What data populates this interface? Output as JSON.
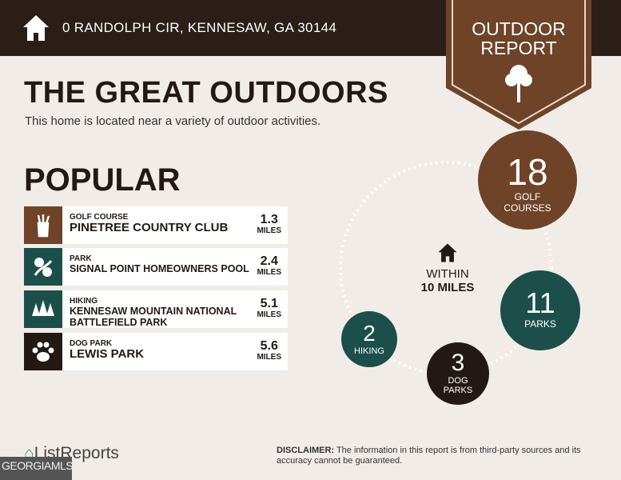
{
  "header": {
    "address": "0 RANDOLPH CIR, KENNESAW, GA 30144",
    "badge_line1": "OUTDOOR",
    "badge_line2": "REPORT"
  },
  "title": "THE GREAT OUTDOORS",
  "subtitle": "This home is located near a variety of outdoor activities.",
  "popular": {
    "heading": "POPULAR",
    "items": [
      {
        "category": "GOLF COURSE",
        "name": "PINETREE COUNTRY CLUB",
        "distance": "1.3",
        "unit": "MILES",
        "icon": "golf-bag-icon",
        "color": "#6e4328"
      },
      {
        "category": "PARK",
        "name": "SIGNAL POINT HOMEOWNERS POOL",
        "distance": "2.4",
        "unit": "MILES",
        "icon": "park-icon",
        "color": "#1c4f4a"
      },
      {
        "category": "HIKING",
        "name": "KENNESAW MOUNTAIN NATIONAL BATTLEFIELD PARK",
        "distance": "5.1",
        "unit": "MILES",
        "icon": "trees-icon",
        "color": "#1c4f4a"
      },
      {
        "category": "DOG PARK",
        "name": "LEWIS PARK",
        "distance": "5.6",
        "unit": "MILES",
        "icon": "paw-icon",
        "color": "#231914"
      }
    ]
  },
  "summary": {
    "within": "WITHIN",
    "radius": "10 MILES",
    "counts": [
      {
        "value": "18",
        "label1": "GOLF",
        "label2": "COURSES",
        "color": "#6e4328"
      },
      {
        "value": "11",
        "label1": "PARKS",
        "label2": "",
        "color": "#1c4f4a"
      },
      {
        "value": "3",
        "label1": "DOG",
        "label2": "PARKS",
        "color": "#231914"
      },
      {
        "value": "2",
        "label1": "HIKING",
        "label2": "",
        "color": "#1c4f4a"
      }
    ]
  },
  "footer": {
    "brand": "ListReports",
    "disclaimer_label": "DISCLAIMER:",
    "disclaimer": " The information in this report is from third-party sources and its accuracy cannot be guaranteed.",
    "mls": "GEORGIAMLS"
  }
}
